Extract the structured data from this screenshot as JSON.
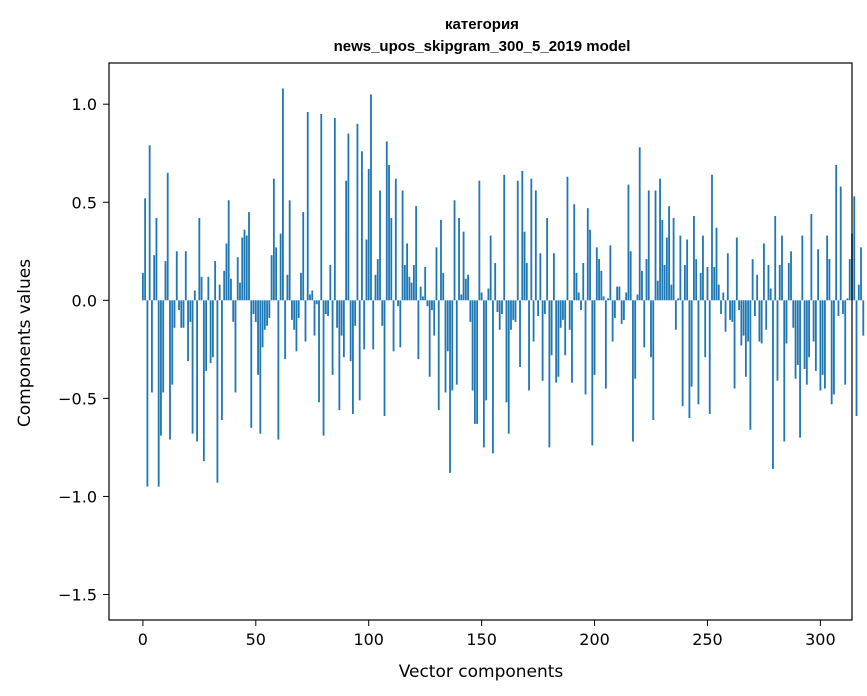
{
  "chart_data": {
    "type": "bar",
    "title": "категория",
    "subtitle": "news_upos_skipgram_300_5_2019 model",
    "xlabel": "Vector components",
    "ylabel": "Components values",
    "xlim": [
      -15,
      314
    ],
    "ylim": [
      -1.63,
      1.21
    ],
    "xticks": [
      0,
      50,
      100,
      150,
      200,
      250,
      300
    ],
    "xtick_labels": [
      "0",
      "50",
      "100",
      "150",
      "200",
      "250",
      "300"
    ],
    "yticks": [
      -1.5,
      -1.0,
      -0.5,
      0.0,
      0.5,
      1.0
    ],
    "ytick_labels": [
      "−1.5",
      "−1.0",
      "−0.5",
      "0.0",
      "0.5",
      "1.0"
    ],
    "grid": false,
    "legend": "none",
    "bar_color": "#1f77b4",
    "x_start": 0,
    "values": [
      0.14,
      0.52,
      -0.95,
      0.79,
      -0.47,
      0.23,
      0.42,
      -0.95,
      -0.69,
      -0.47,
      0.2,
      0.65,
      -0.71,
      -0.43,
      -0.14,
      0.25,
      -0.05,
      -0.14,
      -0.14,
      0.25,
      -0.31,
      -0.11,
      -0.68,
      0.05,
      -0.72,
      0.42,
      0.12,
      -0.82,
      -0.36,
      0.12,
      -0.32,
      -0.29,
      0.2,
      -0.93,
      0.08,
      -0.61,
      0.15,
      0.29,
      0.51,
      0.11,
      -0.11,
      -0.47,
      0.22,
      0.09,
      0.32,
      0.36,
      0.33,
      0.45,
      -0.65,
      -0.07,
      -0.11,
      -0.38,
      -0.68,
      -0.24,
      -0.15,
      -0.13,
      -0.09,
      0.23,
      0.62,
      0.27,
      -0.71,
      0.34,
      1.08,
      -0.3,
      0.13,
      0.51,
      -0.1,
      -0.15,
      -0.26,
      -0.09,
      0.14,
      0.45,
      -0.21,
      0.96,
      0.03,
      0.05,
      -0.18,
      -0.02,
      -0.52,
      0.95,
      -0.69,
      -0.07,
      -0.08,
      0.18,
      -0.38,
      0.93,
      -0.14,
      -0.56,
      -0.18,
      -0.29,
      0.61,
      0.85,
      -0.31,
      -0.58,
      -0.13,
      0.9,
      -0.51,
      0.76,
      -0.25,
      0.31,
      0.67,
      1.05,
      -0.25,
      0.13,
      0.21,
      0.56,
      -0.13,
      -0.59,
      0.81,
      0.69,
      0.42,
      -0.26,
      0.62,
      -0.03,
      -0.24,
      0.56,
      0.18,
      0.29,
      0.12,
      0.09,
      0.18,
      0.48,
      -0.3,
      0.07,
      0.02,
      0.17,
      -0.03,
      -0.39,
      -0.05,
      -0.18,
      0.27,
      -0.56,
      0.41,
      0.14,
      -0.47,
      -0.26,
      -0.88,
      -0.46,
      0.51,
      -0.43,
      0.42,
      0.03,
      0.35,
      0.11,
      0.13,
      -0.11,
      -0.46,
      -0.63,
      -0.63,
      0.61,
      0.04,
      -0.75,
      -0.51,
      0.06,
      0.33,
      -0.78,
      0.19,
      -0.06,
      -0.15,
      -0.07,
      0.64,
      -0.52,
      -0.68,
      -0.15,
      -0.1,
      -0.11,
      0.61,
      -0.34,
      0.66,
      0.35,
      0.19,
      -0.46,
      0.62,
      -0.21,
      0.56,
      -0.08,
      0.24,
      -0.41,
      -0.07,
      0.42,
      -0.75,
      -0.28,
      0.24,
      -0.42,
      -0.39,
      -0.14,
      -0.1,
      -0.28,
      0.63,
      -0.15,
      -0.42,
      0.49,
      0.14,
      0.04,
      -0.05,
      0.19,
      -0.48,
      0.47,
      0.36,
      -0.74,
      -0.38,
      0.27,
      0.21,
      0.15,
      0.02,
      -0.45,
      0.01,
      0.28,
      -0.21,
      -0.09,
      0.07,
      0.07,
      -0.12,
      -0.1,
      0.04,
      0.59,
      0.25,
      -0.72,
      -0.4,
      0.03,
      0.78,
      0.15,
      -0.24,
      0.21,
      0.56,
      -0.29,
      -0.61,
      0.56,
      0.1,
      0.62,
      0.41,
      0.18,
      0.32,
      0.48,
      0.08,
      0.42,
      -0.15,
      0.01,
      0.33,
      -0.54,
      0.18,
      0.31,
      -0.6,
      -0.44,
      0.43,
      0.21,
      -0.53,
      0.14,
      0.33,
      -0.29,
      0.17,
      -0.58,
      0.64,
      0.17,
      0.37,
      0.08,
      -0.07,
      0.04,
      -0.16,
      0.24,
      -0.1,
      -0.11,
      -0.45,
      0.32,
      -0.05,
      -0.23,
      -0.18,
      -0.39,
      -0.21,
      -0.66,
      0.21,
      -0.08,
      0.13,
      -0.21,
      -0.22,
      0.29,
      -0.15,
      0.18,
      0.06,
      -0.86,
      0.43,
      -0.41,
      0.18,
      0.33,
      -0.72,
      -0.22,
      0.19,
      0.25,
      -0.14,
      -0.4,
      -0.33,
      -0.7,
      0.33,
      -0.35,
      -0.43,
      -0.29,
      0.44,
      -0.21,
      -0.36,
      0.26,
      -0.46,
      -0.38,
      -0.45,
      0.33,
      0.21,
      -0.53,
      -0.48,
      0.69,
      -0.08,
      0.58,
      -0.07,
      -0.43,
      0.01,
      0.21,
      0.34,
      0.53,
      -0.59,
      0.08,
      0.27,
      -0.18
    ]
  }
}
